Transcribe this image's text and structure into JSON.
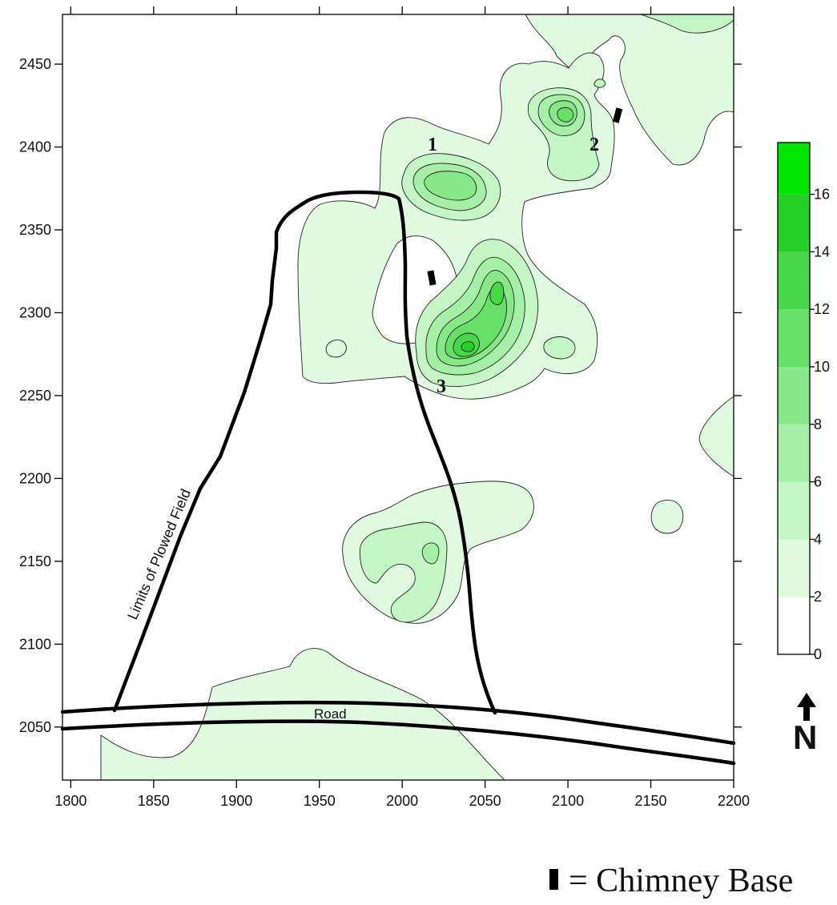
{
  "map": {
    "x_ticks": [
      "1800",
      "1850",
      "1900",
      "1950",
      "2000",
      "2050",
      "2100",
      "2150",
      "2200"
    ],
    "y_ticks": [
      "2450",
      "2400",
      "2350",
      "2300",
      "2250",
      "2200",
      "2150",
      "2100",
      "2050"
    ],
    "x_range": [
      1795,
      2200
    ],
    "y_range": [
      2018,
      2480
    ],
    "anomaly_labels": [
      "1",
      "2",
      "3"
    ],
    "road_label": "Road",
    "field_label": "Limits of Plowed Field"
  },
  "colorbar": {
    "ticks": [
      "0",
      "2",
      "4",
      "6",
      "8",
      "10",
      "12",
      "14",
      "16"
    ],
    "colors": [
      "#ffffff",
      "#e0fae0",
      "#c4f5c4",
      "#a6efa6",
      "#86e886",
      "#66e066",
      "#46d846",
      "#26d026",
      "#00e600"
    ]
  },
  "north_arrow": {
    "label": "N"
  },
  "legend": {
    "text": "= Chimney Base"
  }
}
